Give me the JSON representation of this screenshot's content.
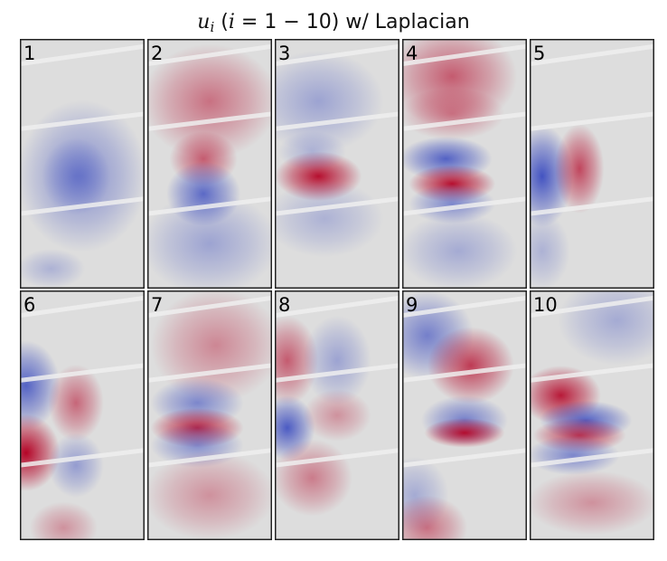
{
  "chart_data": {
    "type": "heatmap",
    "title": "u_i (i = 1 − 10) w/ Laplacian",
    "title_parts": {
      "var": "u",
      "sub": "i",
      "open_paren": "(",
      "index_var": "i",
      "range": " = 1 − 10",
      "close_paren": ")",
      "rest": " w/ Laplacian"
    },
    "layout": "2 rows x 5 columns",
    "colormap": "coolwarm",
    "colors": {
      "negative": "#3b4cc0",
      "neutral": "#dddddd",
      "positive": "#b40426"
    },
    "axes_visible": false,
    "panels": [
      {
        "label": "1"
      },
      {
        "label": "2"
      },
      {
        "label": "3"
      },
      {
        "label": "4"
      },
      {
        "label": "5"
      },
      {
        "label": "6"
      },
      {
        "label": "7"
      },
      {
        "label": "8"
      },
      {
        "label": "9"
      },
      {
        "label": "10"
      }
    ]
  }
}
